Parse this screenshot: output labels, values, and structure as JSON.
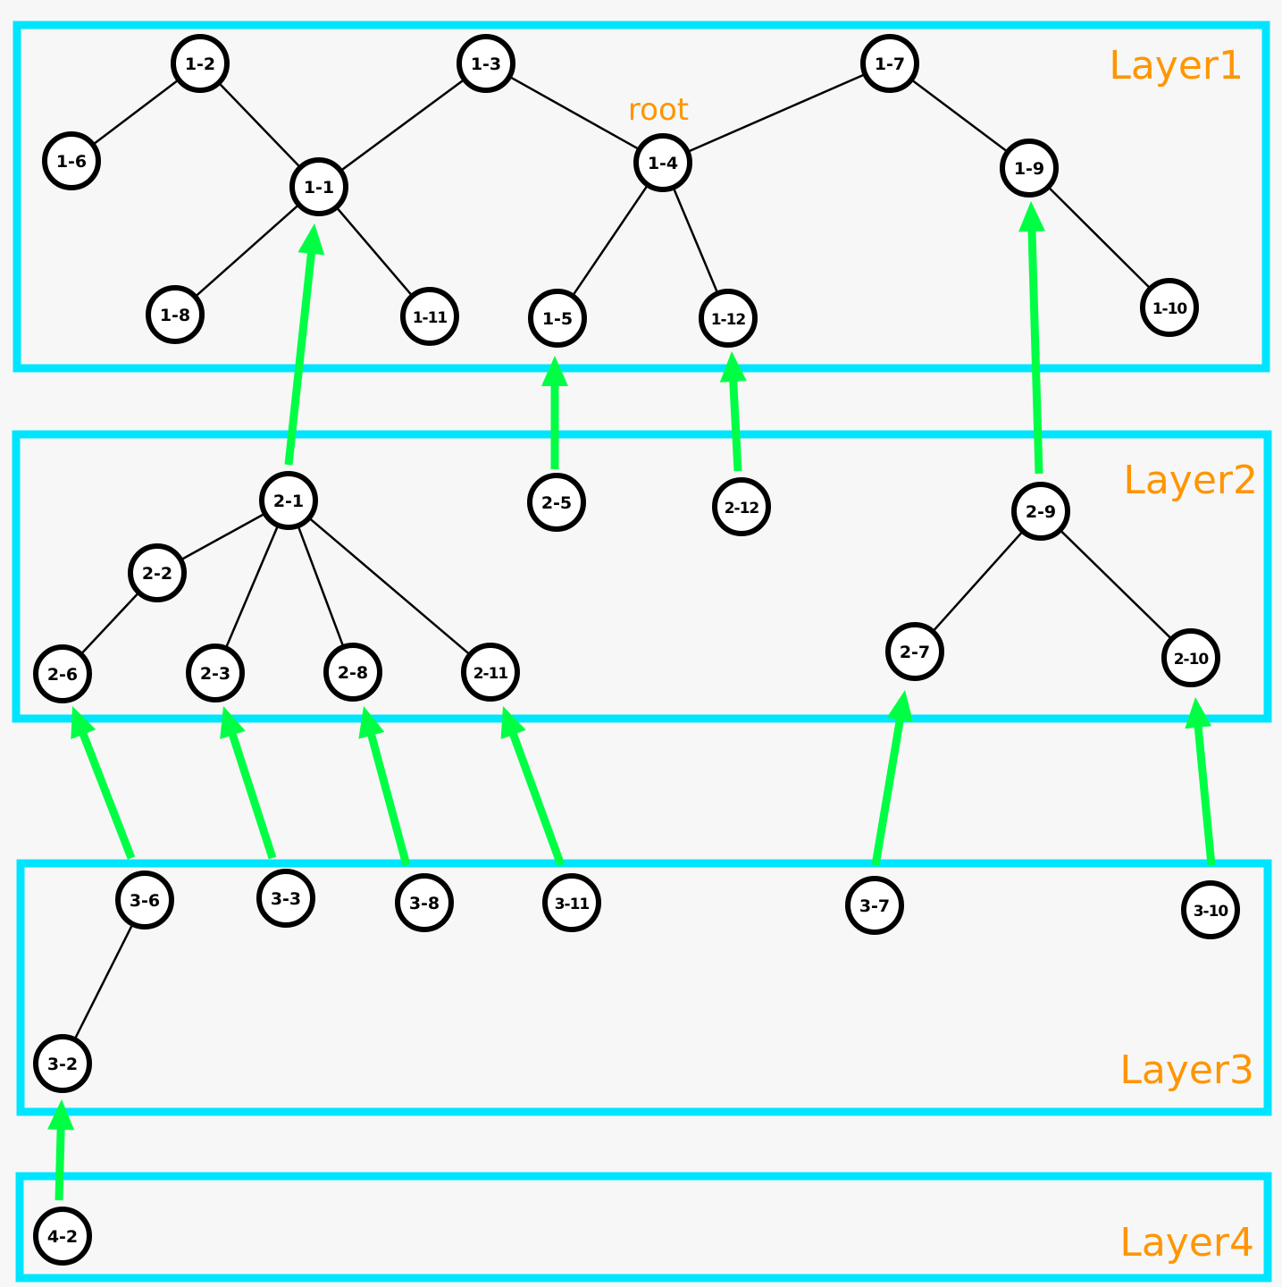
{
  "layers": [
    {
      "id": "L1",
      "label": "Layer1"
    },
    {
      "id": "L2",
      "label": "Layer2"
    },
    {
      "id": "L3",
      "label": "Layer3"
    },
    {
      "id": "L4",
      "label": "Layer4"
    }
  ],
  "root_label": "root",
  "nodes": [
    {
      "id": "1-2",
      "label": "1-2"
    },
    {
      "id": "1-3",
      "label": "1-3"
    },
    {
      "id": "1-7",
      "label": "1-7"
    },
    {
      "id": "1-6",
      "label": "1-6"
    },
    {
      "id": "1-1",
      "label": "1-1"
    },
    {
      "id": "1-4",
      "label": "1-4"
    },
    {
      "id": "1-9",
      "label": "1-9"
    },
    {
      "id": "1-8",
      "label": "1-8"
    },
    {
      "id": "1-11",
      "label": "1-11"
    },
    {
      "id": "1-5",
      "label": "1-5"
    },
    {
      "id": "1-12",
      "label": "1-12"
    },
    {
      "id": "1-10",
      "label": "1-10"
    },
    {
      "id": "2-1",
      "label": "2-1"
    },
    {
      "id": "2-5",
      "label": "2-5"
    },
    {
      "id": "2-12",
      "label": "2-12"
    },
    {
      "id": "2-9",
      "label": "2-9"
    },
    {
      "id": "2-2",
      "label": "2-2"
    },
    {
      "id": "2-6",
      "label": "2-6"
    },
    {
      "id": "2-3",
      "label": "2-3"
    },
    {
      "id": "2-8",
      "label": "2-8"
    },
    {
      "id": "2-11",
      "label": "2-11"
    },
    {
      "id": "2-7",
      "label": "2-7"
    },
    {
      "id": "2-10",
      "label": "2-10"
    },
    {
      "id": "3-6",
      "label": "3-6"
    },
    {
      "id": "3-3",
      "label": "3-3"
    },
    {
      "id": "3-8",
      "label": "3-8"
    },
    {
      "id": "3-11",
      "label": "3-11"
    },
    {
      "id": "3-7",
      "label": "3-7"
    },
    {
      "id": "3-10",
      "label": "3-10"
    },
    {
      "id": "3-2",
      "label": "3-2"
    },
    {
      "id": "4-2",
      "label": "4-2"
    }
  ],
  "edges": [
    [
      "1-2",
      "1-6"
    ],
    [
      "1-2",
      "1-1"
    ],
    [
      "1-3",
      "1-1"
    ],
    [
      "1-3",
      "1-4"
    ],
    [
      "1-7",
      "1-4"
    ],
    [
      "1-7",
      "1-9"
    ],
    [
      "1-1",
      "1-8"
    ],
    [
      "1-1",
      "1-11"
    ],
    [
      "1-4",
      "1-5"
    ],
    [
      "1-4",
      "1-12"
    ],
    [
      "1-9",
      "1-10"
    ],
    [
      "2-1",
      "2-2"
    ],
    [
      "2-1",
      "2-3"
    ],
    [
      "2-1",
      "2-8"
    ],
    [
      "2-1",
      "2-11"
    ],
    [
      "2-2",
      "2-6"
    ],
    [
      "2-9",
      "2-7"
    ],
    [
      "2-9",
      "2-10"
    ],
    [
      "3-6",
      "3-2"
    ]
  ],
  "arrows": [
    [
      "2-1",
      "1-1"
    ],
    [
      "2-5",
      "1-5"
    ],
    [
      "2-12",
      "1-12"
    ],
    [
      "2-9",
      "1-9"
    ],
    [
      "3-6",
      "2-6"
    ],
    [
      "3-3",
      "2-3"
    ],
    [
      "3-8",
      "2-8"
    ],
    [
      "3-11",
      "2-11"
    ],
    [
      "3-7",
      "2-7"
    ],
    [
      "3-10",
      "2-10"
    ],
    [
      "4-2",
      "3-2"
    ]
  ],
  "colors": {
    "layer_border": "#00e5ff",
    "layer_label": "#ff9500",
    "arrow": "#00ff44",
    "edge": "#000000",
    "node_fill": "#ffffff",
    "node_stroke": "#000000"
  }
}
